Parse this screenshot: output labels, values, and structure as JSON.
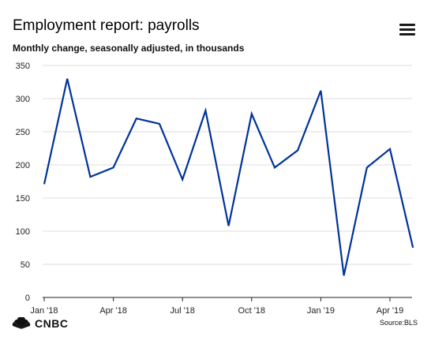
{
  "header": {
    "title": "Employment report: payrolls",
    "subtitle": "Monthly change, seasonally adjusted, in thousands",
    "menu_icon": "hamburger-menu-icon"
  },
  "footer": {
    "brand": "CNBC",
    "brand_icon": "nbc-peacock-icon",
    "source": "Source:BLS"
  },
  "colors": {
    "line": "#003399",
    "grid": "#dddddd",
    "axis": "#222222"
  },
  "chart_data": {
    "type": "line",
    "title": "Employment report: payrolls",
    "subtitle": "Monthly change, seasonally adjusted, in thousands",
    "xlabel": "",
    "ylabel": "",
    "ylim": [
      0,
      350
    ],
    "yticks": [
      0,
      50,
      100,
      150,
      200,
      250,
      300,
      350
    ],
    "xtick_labels": [
      "Jan '18",
      "Apr '18",
      "Jul '18",
      "Oct '18",
      "Jan '19",
      "Apr '19"
    ],
    "grid": true,
    "x": [
      "Jan '18",
      "Feb '18",
      "Mar '18",
      "Apr '18",
      "May '18",
      "Jun '18",
      "Jul '18",
      "Aug '18",
      "Sep '18",
      "Oct '18",
      "Nov '18",
      "Dec '18",
      "Jan '19",
      "Feb '19",
      "Mar '19",
      "Apr '19",
      "May '19"
    ],
    "series": [
      {
        "values": [
          171,
          330,
          182,
          196,
          270,
          262,
          178,
          282,
          108,
          277,
          196,
          222,
          312,
          33,
          196,
          224,
          75
        ]
      }
    ]
  }
}
